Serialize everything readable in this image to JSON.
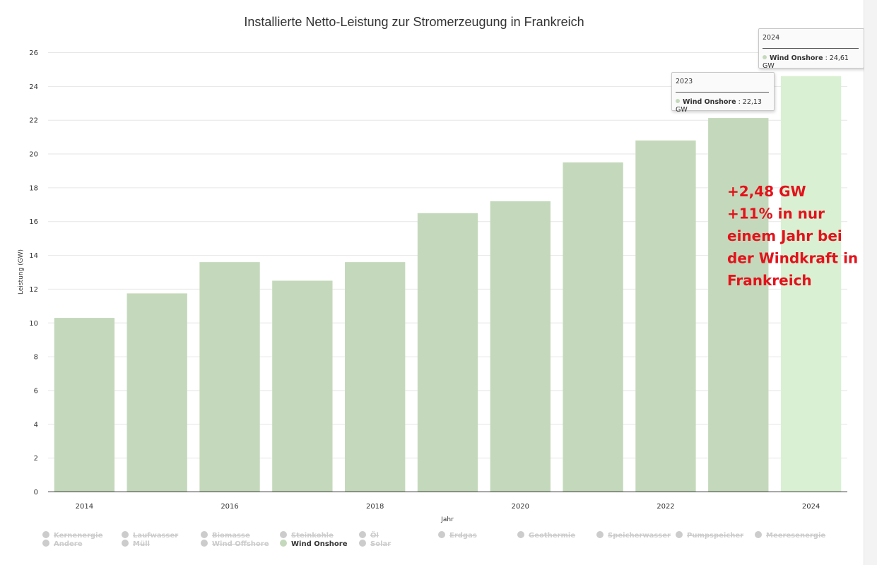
{
  "chart_data": {
    "type": "bar",
    "title": "Installierte Netto-Leistung zur Stromerzeugung in Frankreich",
    "xlabel": "Jahr",
    "ylabel": "Leistung (GW)",
    "categories": [
      "2014",
      "2015",
      "2016",
      "2017",
      "2018",
      "2019",
      "2020",
      "2021",
      "2022",
      "2023",
      "2024"
    ],
    "x_tick_labels": [
      "2014",
      "2016",
      "2018",
      "2020",
      "2022",
      "2024"
    ],
    "y_ticks": [
      "0",
      "2",
      "4",
      "6",
      "8",
      "10",
      "12",
      "14",
      "16",
      "18",
      "20",
      "22",
      "24",
      "26"
    ],
    "ylim": [
      0,
      26
    ],
    "grid": true,
    "series": [
      {
        "name": "Wind Onshore",
        "values": [
          10.3,
          11.75,
          13.6,
          12.5,
          13.6,
          16.5,
          17.2,
          19.5,
          20.8,
          22.13,
          24.61
        ],
        "color": "#c4d9bb",
        "highlight_color": "#d9f0d3"
      }
    ],
    "annotation_lines": [
      "+2,48 GW",
      "+11% in nur",
      "einem Jahr bei",
      "der Windkraft in",
      "Frankreich"
    ],
    "annotation_color": "#e3121b"
  },
  "tooltips": [
    {
      "year": "2023",
      "series": "Wind Onshore",
      "value_text": ": 22,13 GW"
    },
    {
      "year": "2024",
      "series": "Wind Onshore",
      "value_text": ": 24,61 GW"
    }
  ],
  "legend": {
    "items": [
      {
        "label": "Kernenergie",
        "active": false
      },
      {
        "label": "Laufwasser",
        "active": false
      },
      {
        "label": "Biomasse",
        "active": false
      },
      {
        "label": "Steinkohle",
        "active": false
      },
      {
        "label": "Öl",
        "active": false
      },
      {
        "label": "Erdgas",
        "active": false
      },
      {
        "label": "Geothermie",
        "active": false
      },
      {
        "label": "Speicherwasser",
        "active": false
      },
      {
        "label": "Pumpspeicher",
        "active": false
      },
      {
        "label": "Meeresenergie",
        "active": false
      },
      {
        "label": "Andere",
        "active": false
      },
      {
        "label": "Müll",
        "active": false
      },
      {
        "label": "Wind Offshore",
        "active": false
      },
      {
        "label": "Wind Onshore",
        "active": true
      },
      {
        "label": "Solar",
        "active": false
      }
    ],
    "active_color": "#c4d9bb",
    "inactive_color": "#cccccc"
  }
}
